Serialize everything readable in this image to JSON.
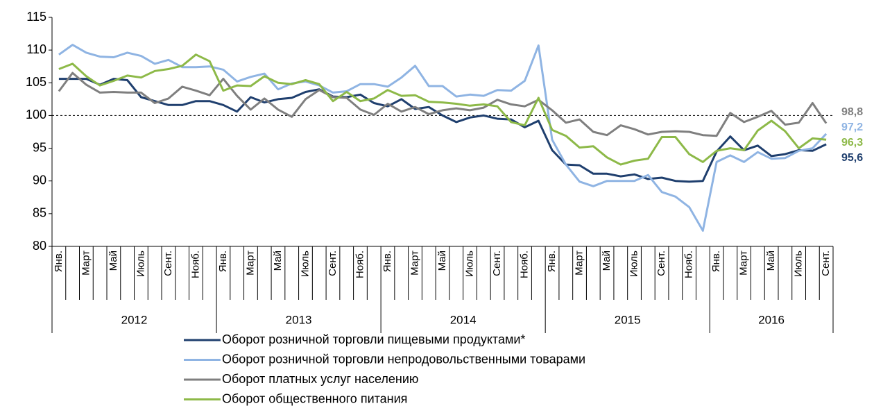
{
  "chart_data": {
    "type": "line",
    "categories": [
      "Янв.",
      null,
      "Март",
      null,
      "Май",
      null,
      "Июль",
      null,
      "Сент.",
      null,
      "Нояб.",
      null,
      "Янв.",
      null,
      "Март",
      null,
      "Май",
      null,
      "Июль",
      null,
      "Сент.",
      null,
      "Нояб.",
      null,
      "Янв.",
      null,
      "Март",
      null,
      "Май",
      null,
      "Июль",
      null,
      "Сент.",
      null,
      "Нояб.",
      null,
      "Янв.",
      null,
      "Март",
      null,
      "Май",
      null,
      "Июль",
      null,
      "Сент.",
      null,
      "Нояб.",
      null,
      "Янв.",
      null,
      "Март",
      null,
      "Май",
      null,
      "Июль",
      null,
      "Сент."
    ],
    "groups": [
      "2012",
      "2013",
      "2014",
      "2015",
      "2016"
    ],
    "series": [
      {
        "name": "Оборот розничной торговли пищевыми продуктами*",
        "color": "#1f3f6e",
        "values": [
          105.6,
          105.6,
          105.6,
          104.7,
          105.6,
          105.4,
          102.8,
          102.2,
          101.6,
          101.6,
          102.2,
          102.2,
          101.6,
          100.6,
          102.8,
          102.0,
          102.5,
          102.7,
          103.6,
          104.0,
          102.9,
          102.8,
          103.2,
          101.9,
          101.4,
          102.5,
          101.0,
          101.3,
          100.0,
          99.0,
          99.7,
          100.0,
          99.5,
          99.4,
          98.2,
          99.2,
          94.7,
          92.5,
          92.4,
          91.1,
          91.1,
          90.7,
          91.0,
          90.3,
          90.5,
          90.0,
          89.9,
          90.0,
          94.5,
          96.8,
          94.7,
          95.4,
          93.8,
          94.1,
          94.7,
          94.6,
          95.6
        ],
        "value_labels": [
          null,
          null,
          null,
          null,
          null,
          null,
          null,
          null,
          null,
          null,
          null,
          null,
          null,
          null,
          null,
          null,
          null,
          null,
          null,
          null,
          null,
          null,
          null,
          null,
          null,
          null,
          null,
          null,
          null,
          null,
          null,
          null,
          null,
          null,
          null,
          null,
          null,
          null,
          null,
          null,
          null,
          null,
          null,
          null,
          null,
          null,
          null,
          null,
          null,
          null,
          null,
          null,
          null,
          null,
          null,
          null,
          "95,6"
        ]
      },
      {
        "name": "Оборот розничной торговли непродовольственными товарами",
        "color": "#8fb4e3",
        "values": [
          109.3,
          110.8,
          109.6,
          109.0,
          108.9,
          109.6,
          109.1,
          107.9,
          108.5,
          107.4,
          107.4,
          107.5,
          107.0,
          105.2,
          105.9,
          106.4,
          104.0,
          104.9,
          105.2,
          104.6,
          103.5,
          103.7,
          104.8,
          104.8,
          104.4,
          105.8,
          107.6,
          104.5,
          104.5,
          102.9,
          103.2,
          103.0,
          103.9,
          103.8,
          105.3,
          110.7,
          96.3,
          92.5,
          89.9,
          89.2,
          90.0,
          90.0,
          90.0,
          90.9,
          88.3,
          87.6,
          86.0,
          82.4,
          92.9,
          93.9,
          92.9,
          94.4,
          93.4,
          93.5,
          94.6,
          95.0,
          97.2
        ],
        "value_labels": [
          null,
          null,
          null,
          null,
          null,
          null,
          null,
          null,
          null,
          null,
          null,
          null,
          null,
          null,
          null,
          null,
          null,
          null,
          null,
          null,
          null,
          null,
          null,
          null,
          null,
          null,
          null,
          null,
          null,
          null,
          null,
          null,
          null,
          null,
          null,
          null,
          null,
          null,
          null,
          null,
          null,
          null,
          null,
          null,
          null,
          null,
          null,
          null,
          null,
          null,
          null,
          null,
          null,
          null,
          null,
          null,
          "97,2"
        ]
      },
      {
        "name": "Оборот платных услуг населению",
        "color": "#7f7f7f",
        "values": [
          103.7,
          106.5,
          104.7,
          103.5,
          103.6,
          103.5,
          103.5,
          101.9,
          102.6,
          104.4,
          103.8,
          103.1,
          105.6,
          103.0,
          100.9,
          102.6,
          100.9,
          99.8,
          102.5,
          103.9,
          102.8,
          102.7,
          100.9,
          100.1,
          101.8,
          100.6,
          101.3,
          100.2,
          100.8,
          101.1,
          100.8,
          101.2,
          102.4,
          101.7,
          101.4,
          102.4,
          100.8,
          98.9,
          99.4,
          97.5,
          97.0,
          98.5,
          97.9,
          97.1,
          97.5,
          97.6,
          97.5,
          97.0,
          96.9,
          100.4,
          99.0,
          99.8,
          100.7,
          98.6,
          98.9,
          101.9,
          98.8
        ],
        "value_labels": [
          null,
          null,
          null,
          null,
          null,
          null,
          null,
          null,
          null,
          null,
          null,
          null,
          null,
          null,
          null,
          null,
          null,
          null,
          null,
          null,
          null,
          null,
          null,
          null,
          null,
          null,
          null,
          null,
          null,
          null,
          null,
          null,
          null,
          null,
          null,
          null,
          null,
          null,
          null,
          null,
          null,
          null,
          null,
          null,
          null,
          null,
          null,
          null,
          null,
          null,
          null,
          null,
          null,
          null,
          null,
          null,
          "98,8"
        ]
      },
      {
        "name": "Оборот общественного питания",
        "color": "#8db948",
        "values": [
          107.1,
          107.9,
          106.0,
          104.6,
          105.3,
          106.1,
          105.8,
          106.8,
          107.1,
          107.6,
          109.3,
          108.3,
          103.8,
          104.6,
          104.5,
          106.0,
          105.0,
          104.8,
          105.4,
          104.8,
          102.2,
          103.6,
          102.2,
          102.6,
          103.9,
          103.0,
          103.1,
          102.1,
          102.0,
          101.8,
          101.5,
          101.7,
          101.4,
          99.0,
          98.5,
          102.7,
          97.8,
          96.9,
          95.1,
          95.3,
          93.6,
          92.5,
          93.1,
          93.4,
          96.7,
          96.7,
          94.1,
          92.9,
          94.6,
          95.0,
          94.7,
          97.7,
          99.2,
          97.6,
          95.0,
          96.5,
          96.3
        ],
        "value_labels": [
          null,
          null,
          null,
          null,
          null,
          null,
          null,
          null,
          null,
          null,
          null,
          null,
          null,
          null,
          null,
          null,
          null,
          null,
          null,
          null,
          null,
          null,
          null,
          null,
          null,
          null,
          null,
          null,
          null,
          null,
          null,
          null,
          null,
          null,
          null,
          null,
          null,
          null,
          null,
          null,
          null,
          null,
          null,
          null,
          null,
          null,
          null,
          null,
          null,
          null,
          null,
          null,
          null,
          null,
          null,
          null,
          "96,3"
        ]
      }
    ],
    "ylim": [
      80,
      115
    ],
    "yticks": [
      80,
      85,
      90,
      95,
      100,
      105,
      110,
      115
    ],
    "reference_line": 100,
    "legend": "bottom"
  }
}
